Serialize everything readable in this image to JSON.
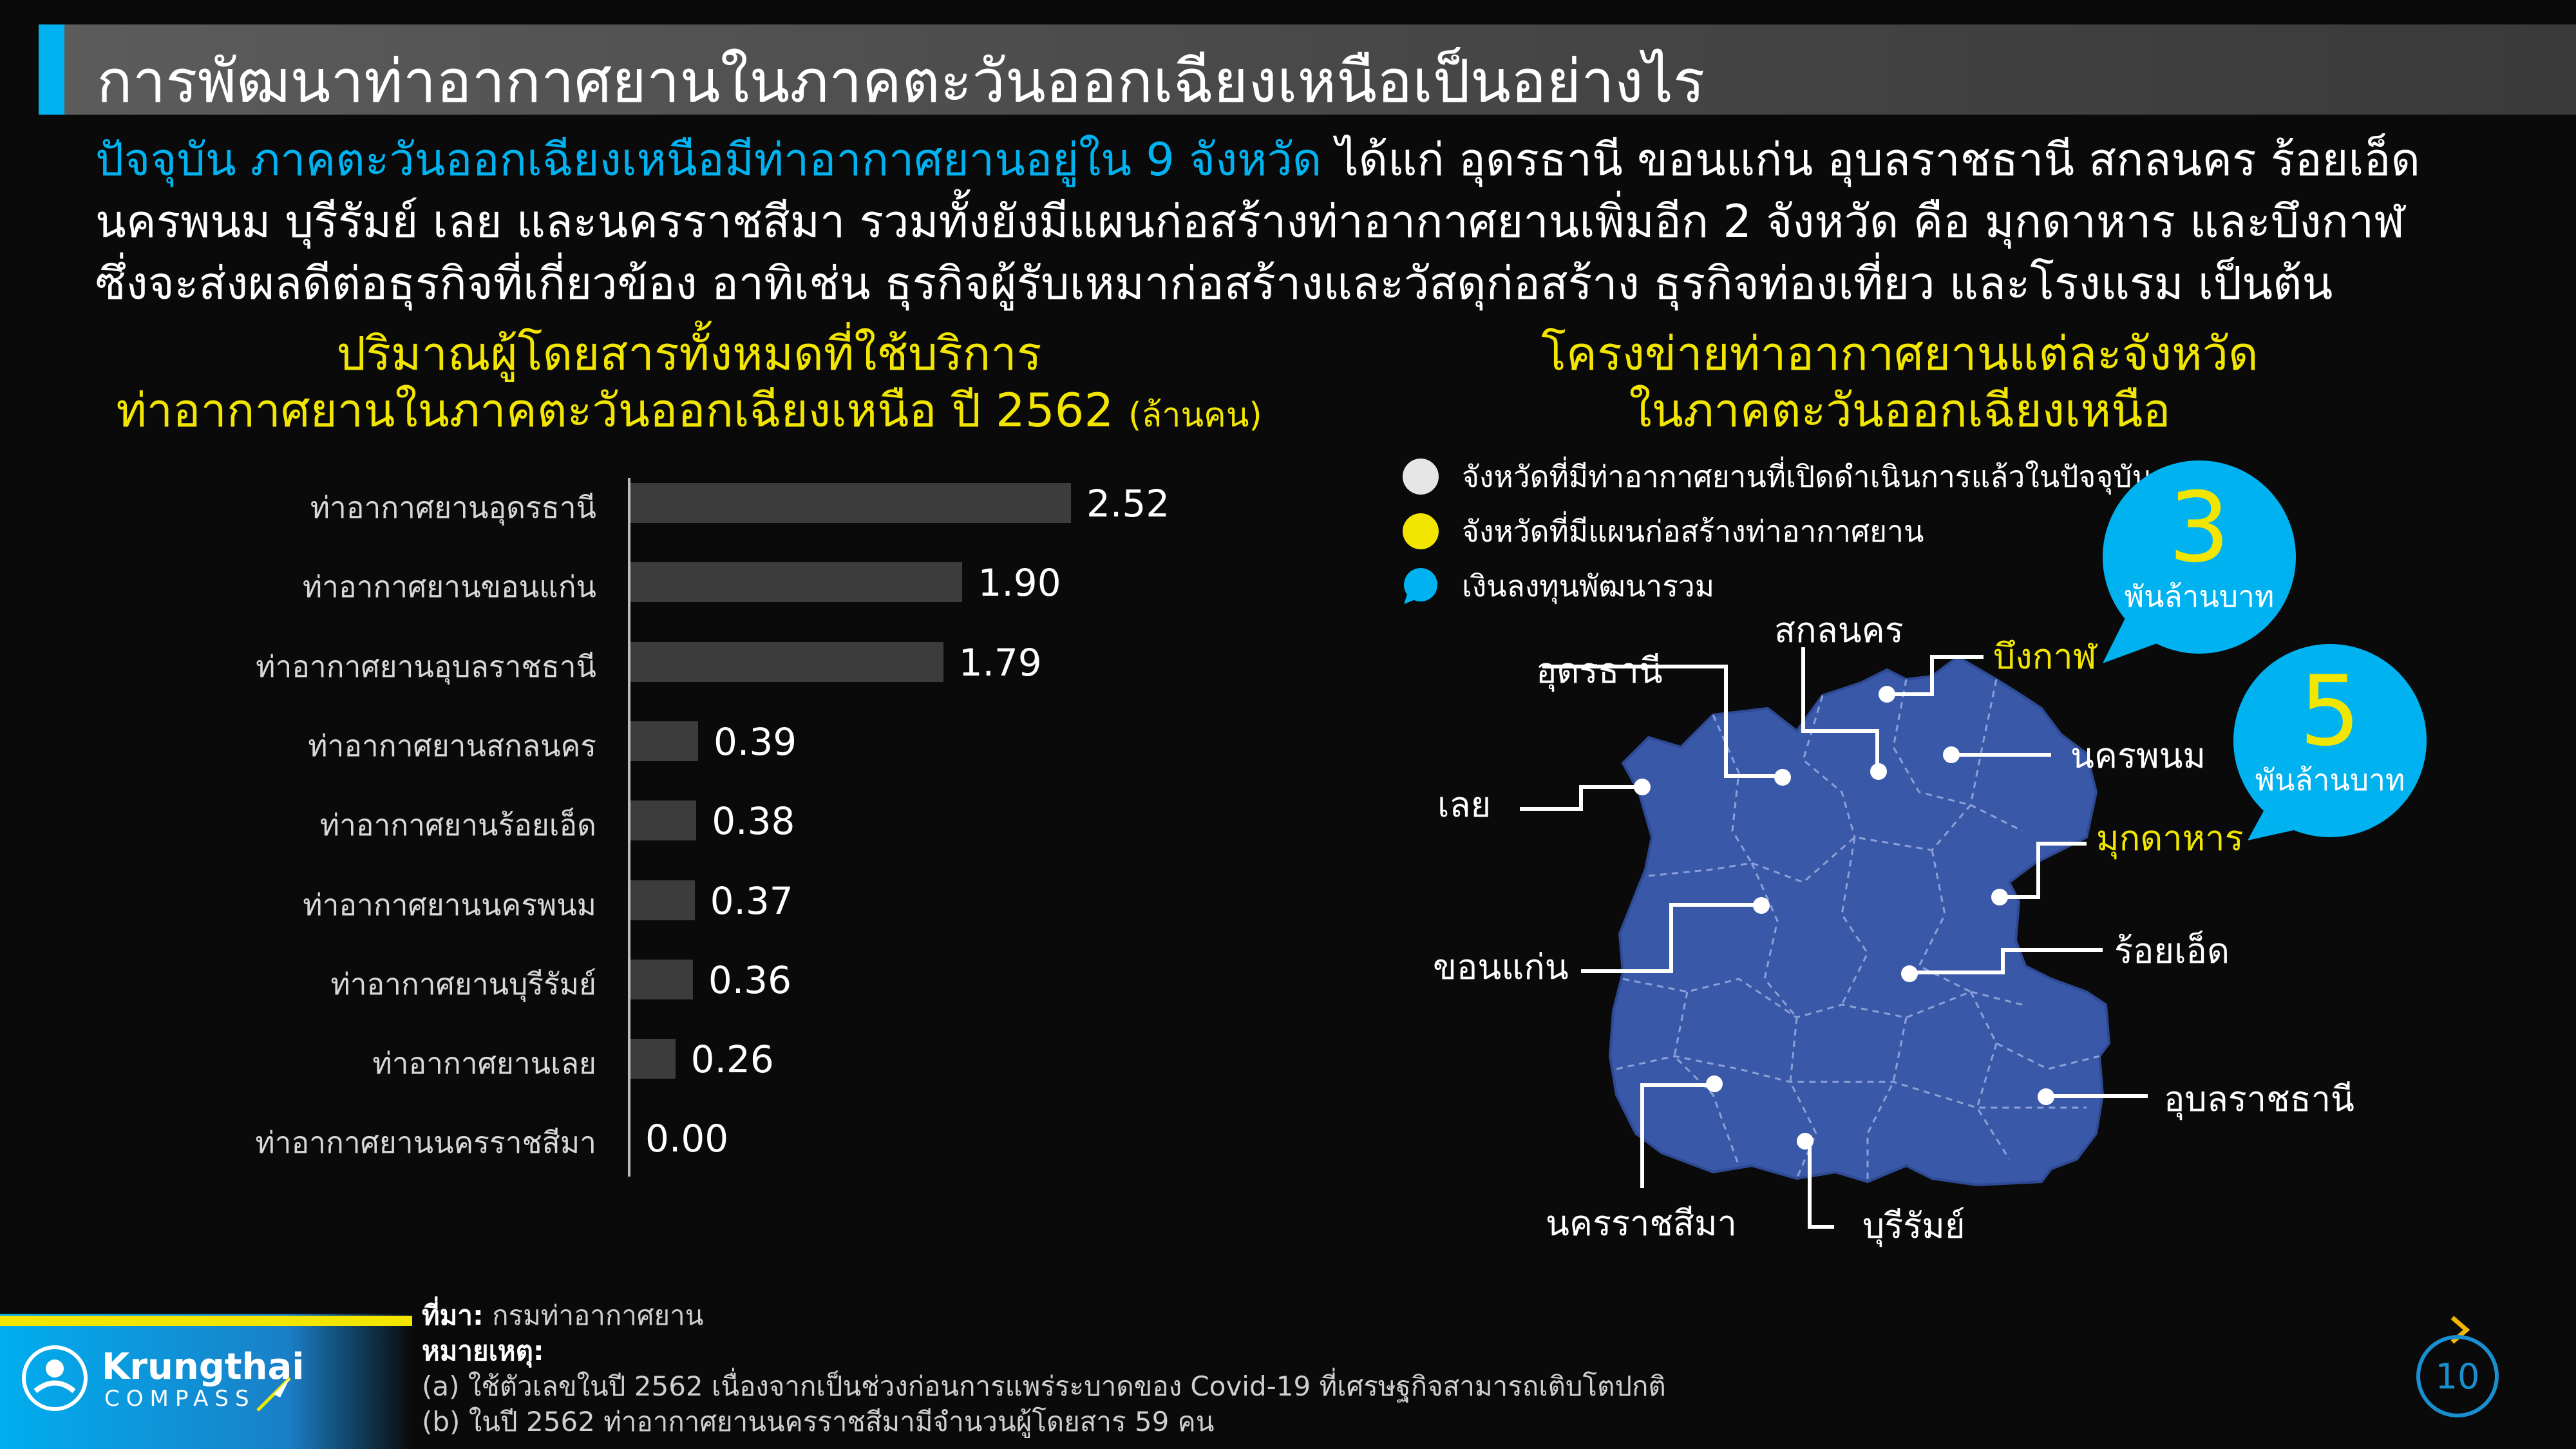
{
  "header": {
    "title": "การพัฒนาท่าอากาศยานในภาคตะวันออกเฉียงเหนือเป็นอย่างไร"
  },
  "intro": {
    "highlight": "ปัจจุบัน ภาคตะวันออกเฉียงเหนือมีท่าอากาศยานอยู่ใน 9 จังหวัด",
    "line1_rest": " ได้แก่ อุดรธานี ขอนแก่น อุบลราชธานี สกลนคร ร้อยเอ็ด",
    "line2": "นครพนม บุรีรัมย์ เลย และนครราชสีมา รวมทั้งยังมีแผนก่อสร้างท่าอากาศยานเพิ่มอีก 2 จังหวัด คือ มุกดาหาร และบึงกาฬ",
    "line3": "ซึ่งจะส่งผลดีต่อธุรกิจที่เกี่ยวข้อง อาทิเช่น ธุรกิจผู้รับเหมาก่อสร้างและวัสดุก่อสร้าง ธุรกิจท่องเที่ยว และโรงแรม เป็นต้น"
  },
  "chart_data": {
    "type": "bar",
    "orientation": "horizontal",
    "title_line1": "ปริมาณผู้โดยสารทั้งหมดที่ใช้บริการ",
    "title_line2": "ท่าอากาศยานในภาคตะวันออกเฉียงเหนือ ปี 2562",
    "unit": "(ล้านคน)",
    "categories": [
      "ท่าอากาศยานอุดรธานี",
      "ท่าอากาศยานขอนแก่น",
      "ท่าอากาศยานอุบลราชธานี",
      "ท่าอากาศยานสกลนคร",
      "ท่าอากาศยานร้อยเอ็ด",
      "ท่าอากาศยานนครพนม",
      "ท่าอากาศยานบุรีรัมย์",
      "ท่าอากาศยานเลย",
      "ท่าอากาศยานนครราชสีมา"
    ],
    "values": [
      2.52,
      1.9,
      1.79,
      0.39,
      0.38,
      0.37,
      0.36,
      0.26,
      0.0
    ],
    "value_labels": [
      "2.52",
      "1.90",
      "1.79",
      "0.39",
      "0.38",
      "0.37",
      "0.36",
      "0.26",
      "0.00"
    ],
    "xlim": [
      0,
      2.52
    ],
    "grid": false,
    "bar_color": "#3c3c3c"
  },
  "map": {
    "title_line1": "โครงข่ายท่าอากาศยานแต่ละจังหวัด",
    "title_line2": "ในภาคตะวันออกเฉียงเหนือ",
    "legend": [
      {
        "label": "จังหวัดที่มีท่าอากาศยานที่เปิดดำเนินการแล้วในปัจจุบัน",
        "color": "#e6e6e6"
      },
      {
        "label": "จังหวัดที่มีแผนก่อสร้างท่าอากาศยาน",
        "color": "#f2e600"
      },
      {
        "label": "เงินลงทุนพัฒนารวม",
        "color": "#00b3f0"
      }
    ],
    "provinces": {
      "udon": "อุดรธานี",
      "sakon": "สกลนคร",
      "bueng": "บึงกาฬ",
      "nakhonphanom": "นครพนม",
      "loei": "เลย",
      "mukdahan": "มุกดาหาร",
      "khonkaen": "ขอนแก่น",
      "roiet": "ร้อยเอ็ด",
      "ubon": "อุบลราชธานี",
      "korat": "นครราชสีมา",
      "buriram": "บุรีรัมย์"
    },
    "bubbles": [
      {
        "value": "3",
        "caption": "พันล้านบาท"
      },
      {
        "value": "5",
        "caption": "พันล้านบาท"
      }
    ],
    "map_color": "#3a58a8",
    "bubble_color": "#00b3f0"
  },
  "footer": {
    "logo_main": "Krungthai",
    "logo_sub": "COMPASS",
    "source_label": "ที่มา:",
    "source_text": " กรมท่าอากาศยาน",
    "notes_label": "หมายเหตุ:",
    "note_a": "(a) ใช้ตัวเลขในปี 2562 เนื่องจากเป็นช่วงก่อนการแพร่ระบาดของ Covid-19 ที่เศรษฐกิจสามารถเติบโตปกติ",
    "note_b": "(b) ในปี 2562 ท่าอากาศยานนครราชสีมามีจำนวนผู้โดยสาร 59 คน",
    "page": "10"
  }
}
